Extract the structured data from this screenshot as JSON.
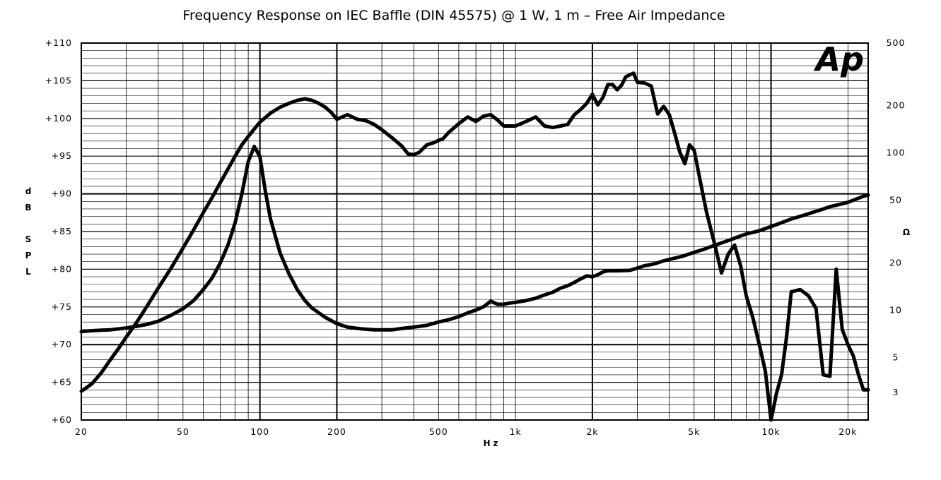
{
  "chart_data": {
    "type": "line",
    "title": "Frequency Response on IEC Baffle (DIN 45575) @ 1 W, 1 m – Free Air Impedance",
    "xlabel": "Hz",
    "ylabel_left": "dB SPL",
    "ylabel_right": "Ω",
    "logo": "Ap",
    "x_scale": "log",
    "xlim": [
      20,
      24000
    ],
    "ylim_left": [
      60,
      110
    ],
    "ylim_right": [
      2,
      500
    ],
    "y_right_scale": "log",
    "grid": true,
    "x_ticks": [
      {
        "value": 20,
        "label": "20"
      },
      {
        "value": 50,
        "label": "50"
      },
      {
        "value": 100,
        "label": "100"
      },
      {
        "value": 200,
        "label": "200"
      },
      {
        "value": 500,
        "label": "500"
      },
      {
        "value": 1000,
        "label": "1k"
      },
      {
        "value": 2000,
        "label": "2k"
      },
      {
        "value": 5000,
        "label": "5k"
      },
      {
        "value": 10000,
        "label": "10k"
      },
      {
        "value": 20000,
        "label": "20k"
      }
    ],
    "y_left_ticks": [
      {
        "value": 110,
        "label": "+110"
      },
      {
        "value": 105,
        "label": "+105"
      },
      {
        "value": 100,
        "label": "+100"
      },
      {
        "value": 95,
        "label": "+95"
      },
      {
        "value": 90,
        "label": "+90"
      },
      {
        "value": 85,
        "label": "+85"
      },
      {
        "value": 80,
        "label": "+80"
      },
      {
        "value": 75,
        "label": "+75"
      },
      {
        "value": 70,
        "label": "+70"
      },
      {
        "value": 65,
        "label": "+65"
      },
      {
        "value": 60,
        "label": "+60"
      }
    ],
    "y_right_ticks": [
      {
        "value": 500,
        "label": "500"
      },
      {
        "value": 200,
        "label": "200"
      },
      {
        "value": 100,
        "label": "100"
      },
      {
        "value": 50,
        "label": "50"
      },
      {
        "value": 20,
        "label": "20"
      },
      {
        "value": 10,
        "label": "10"
      },
      {
        "value": 5,
        "label": "5"
      },
      {
        "value": 3,
        "label": "3"
      }
    ],
    "series": [
      {
        "axis": "left",
        "x": [
          20,
          22,
          24,
          26,
          28,
          30,
          33,
          36,
          40,
          45,
          50,
          55,
          60,
          65,
          70,
          75,
          80,
          85,
          90,
          95,
          100,
          110,
          120,
          130,
          140,
          150,
          160,
          170,
          180,
          190,
          200,
          220,
          240,
          260,
          280,
          300,
          330,
          360,
          380,
          400,
          420,
          450,
          480,
          500,
          520,
          550,
          600,
          650,
          700,
          750,
          800,
          850,
          900,
          950,
          1000,
          1100,
          1200,
          1300,
          1400,
          1500,
          1600,
          1700,
          1800,
          1900,
          2000,
          2100,
          2200,
          2300,
          2400,
          2500,
          2600,
          2700,
          2800,
          2900,
          3000,
          3200,
          3400,
          3600,
          3800,
          4000,
          4200,
          4400,
          4600,
          4800,
          5000,
          5300,
          5600,
          6000,
          6400,
          6800,
          7200,
          7600,
          8000,
          8500,
          9000,
          9500,
          10000,
          10500,
          11000,
          11500,
          12000,
          13000,
          14000,
          15000,
          16000,
          17000,
          18000,
          19000,
          20000,
          21000,
          22000,
          23000,
          24000
        ],
        "values": [
          63.8,
          64.8,
          66.3,
          68.0,
          69.5,
          71.0,
          73.0,
          75.0,
          77.5,
          80.2,
          82.8,
          85.2,
          87.5,
          89.5,
          91.5,
          93.3,
          95.0,
          96.5,
          97.6,
          98.6,
          99.5,
          100.7,
          101.5,
          102.0,
          102.4,
          102.6,
          102.4,
          102.0,
          101.5,
          100.8,
          99.9,
          100.5,
          99.9,
          99.7,
          99.2,
          98.5,
          97.4,
          96.3,
          95.3,
          95.2,
          95.5,
          96.5,
          96.8,
          97.1,
          97.3,
          98.2,
          99.3,
          100.2,
          99.6,
          100.3,
          100.5,
          99.8,
          99.0,
          99.0,
          99.0,
          99.6,
          100.2,
          99.0,
          98.8,
          99.0,
          99.2,
          100.5,
          101.2,
          102.0,
          103.2,
          101.8,
          102.8,
          104.5,
          104.5,
          103.8,
          104.4,
          105.5,
          105.8,
          106.0,
          104.8,
          104.7,
          104.3,
          100.6,
          101.6,
          100.5,
          98.0,
          95.5,
          94.0,
          96.5,
          95.8,
          91.5,
          87.5,
          83.5,
          79.5,
          82.0,
          83.2,
          80.5,
          76.5,
          73.5,
          70.0,
          66.5,
          60.0,
          63.5,
          66.0,
          71.0,
          77.0,
          77.3,
          76.5,
          74.8,
          66.0,
          65.8,
          80.0,
          72.0,
          70.0,
          68.5,
          66.0,
          64.0,
          64.0
        ]
      },
      {
        "axis": "right",
        "x": [
          20,
          22,
          24,
          26,
          28,
          30,
          33,
          36,
          40,
          45,
          50,
          55,
          60,
          65,
          70,
          75,
          80,
          85,
          90,
          95,
          100,
          105,
          110,
          120,
          130,
          140,
          150,
          160,
          180,
          200,
          220,
          250,
          280,
          300,
          330,
          350,
          400,
          450,
          500,
          550,
          600,
          650,
          700,
          750,
          800,
          850,
          900,
          950,
          1000,
          1100,
          1200,
          1300,
          1400,
          1500,
          1600,
          1700,
          1800,
          1900,
          2000,
          2100,
          2200,
          2300,
          2400,
          2500,
          2800,
          3000,
          3200,
          3400,
          3600,
          3800,
          4000,
          4500,
          5000,
          5500,
          6000,
          6500,
          7000,
          7500,
          8000,
          9000,
          10000,
          11000,
          12000,
          13000,
          14000,
          15000,
          16000,
          17000,
          18000,
          19000,
          20000,
          21000,
          22000,
          23000,
          24000
        ],
        "values": [
          7.3,
          7.4,
          7.45,
          7.5,
          7.6,
          7.7,
          7.9,
          8.1,
          8.5,
          9.3,
          10.2,
          11.5,
          13.5,
          16.0,
          20.0,
          26.0,
          36.0,
          55.0,
          88.0,
          110.0,
          95.0,
          57.0,
          38.0,
          23.0,
          17.0,
          13.5,
          11.5,
          10.3,
          9.0,
          8.2,
          7.8,
          7.6,
          7.5,
          7.5,
          7.5,
          7.6,
          7.8,
          8.0,
          8.4,
          8.7,
          9.1,
          9.6,
          10.0,
          10.5,
          11.4,
          10.9,
          10.9,
          11.1,
          11.2,
          11.5,
          11.9,
          12.5,
          13.0,
          13.8,
          14.3,
          15.0,
          15.8,
          16.5,
          16.3,
          16.8,
          17.5,
          17.8,
          17.8,
          17.8,
          17.9,
          18.5,
          19.2,
          19.5,
          20.0,
          20.6,
          21.0,
          22.0,
          23.3,
          24.5,
          25.8,
          27.0,
          28.2,
          29.4,
          30.5,
          32.0,
          34.0,
          36.0,
          38.0,
          39.5,
          41.0,
          42.5,
          44.0,
          45.5,
          46.5,
          47.5,
          48.5,
          50.0,
          51.5,
          53.0,
          54.0
        ]
      }
    ]
  }
}
